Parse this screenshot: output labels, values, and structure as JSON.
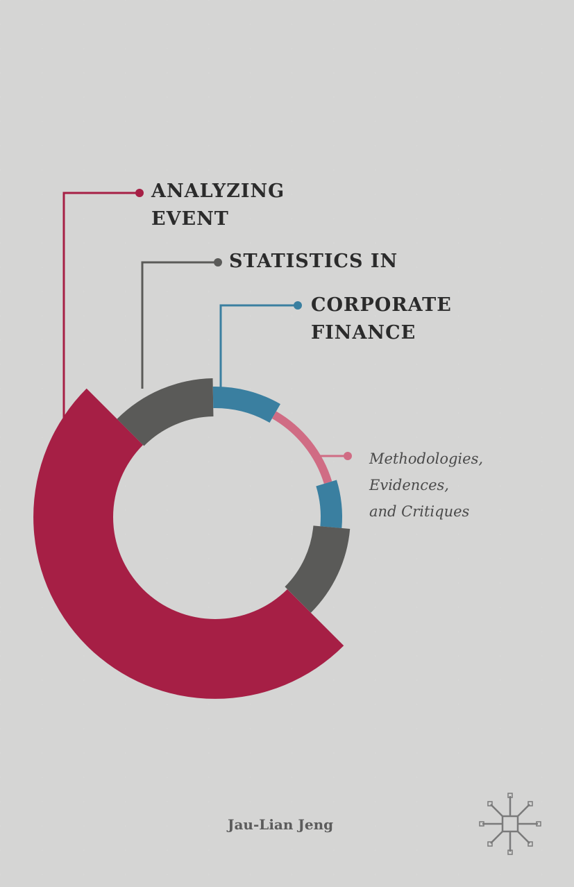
{
  "cover": {
    "title_lines": [
      "ANALYZING",
      "EVENT",
      "STATISTICS IN",
      "CORPORATE",
      "FINANCE"
    ],
    "subtitle_lines": [
      "Methodologies,",
      "Evidences,",
      "and Critiques"
    ],
    "author": "Jau-Lian Jeng",
    "publisher_logo": "palgrave-macmillan-logo"
  },
  "colors": {
    "background": "#d5d5d4",
    "crimson": "#a61f45",
    "gray": "#5a5a58",
    "blue": "#3a7fa0",
    "pink": "#d06c84",
    "text": "#2b2b2b"
  }
}
